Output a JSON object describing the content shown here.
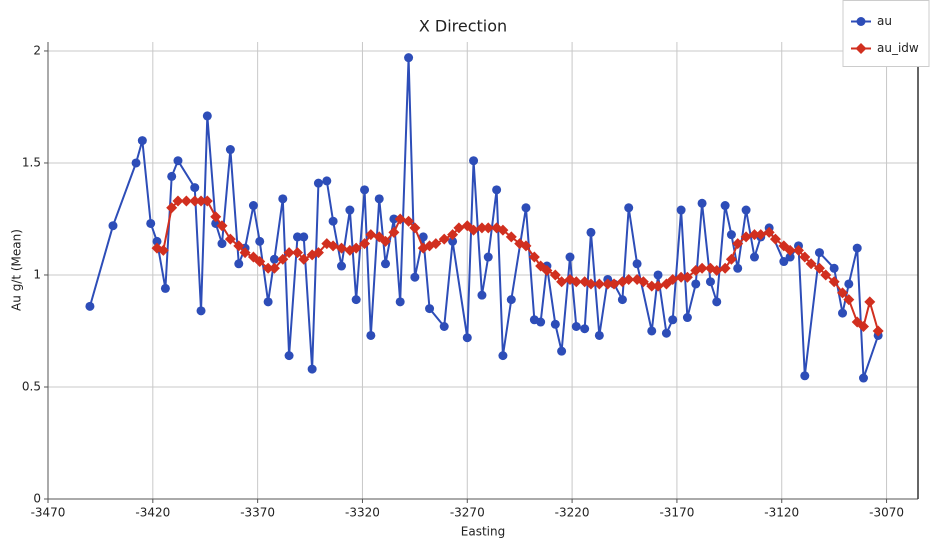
{
  "chart_data": {
    "type": "line",
    "title": "X Direction",
    "x_label": "Easting",
    "y_label": "Au g/t (Mean)",
    "xlim": [
      -3470,
      -3055
    ],
    "ylim": [
      0,
      2.04
    ],
    "xticks": [
      -3470,
      -3420,
      -3370,
      -3320,
      -3270,
      -3220,
      -3170,
      -3120,
      -3070
    ],
    "yticks": [
      0,
      0.5,
      1,
      1.5,
      2
    ],
    "grid": true,
    "legend": "top-right",
    "series": [
      {
        "name": "au",
        "color": "#2d4db8",
        "marker": "circle",
        "x": [
          -3450,
          -3439,
          -3428,
          -3425,
          -3421,
          -3418,
          -3414,
          -3411,
          -3408,
          -3400,
          -3397,
          -3394,
          -3390,
          -3387,
          -3383,
          -3379,
          -3376,
          -3372,
          -3369,
          -3365,
          -3362,
          -3358,
          -3355,
          -3351,
          -3348,
          -3344,
          -3341,
          -3337,
          -3334,
          -3330,
          -3326,
          -3323,
          -3319,
          -3316,
          -3312,
          -3309,
          -3305,
          -3302,
          -3298,
          -3295,
          -3291,
          -3288,
          -3281,
          -3277,
          -3270,
          -3267,
          -3263,
          -3260,
          -3256,
          -3253,
          -3249,
          -3242,
          -3238,
          -3235,
          -3232,
          -3228,
          -3225,
          -3221,
          -3218,
          -3214,
          -3211,
          -3207,
          -3203,
          -3200,
          -3196,
          -3193,
          -3189,
          -3182,
          -3179,
          -3175,
          -3172,
          -3168,
          -3165,
          -3161,
          -3158,
          -3154,
          -3151,
          -3147,
          -3144,
          -3141,
          -3137,
          -3133,
          -3130,
          -3126,
          -3119,
          -3116,
          -3112,
          -3109,
          -3102,
          -3095,
          -3091,
          -3088,
          -3084,
          -3081,
          -3074
        ],
        "values": [
          0.86,
          1.22,
          1.5,
          1.6,
          1.23,
          1.15,
          0.94,
          1.44,
          1.51,
          1.39,
          0.84,
          1.71,
          1.23,
          1.14,
          1.56,
          1.05,
          1.12,
          1.31,
          1.15,
          0.88,
          1.07,
          1.34,
          0.64,
          1.17,
          1.17,
          0.58,
          1.41,
          1.42,
          1.24,
          1.04,
          1.29,
          0.89,
          1.38,
          0.73,
          1.34,
          1.05,
          1.25,
          0.88,
          1.97,
          0.99,
          1.17,
          0.85,
          0.77,
          1.15,
          0.72,
          1.51,
          0.91,
          1.08,
          1.38,
          0.64,
          0.89,
          1.3,
          0.8,
          0.79,
          1.04,
          0.78,
          0.66,
          1.08,
          0.77,
          0.76,
          1.19,
          0.73,
          0.98,
          0.96,
          0.89,
          1.3,
          1.05,
          0.75,
          1.0,
          0.74,
          0.8,
          1.29,
          0.81,
          0.96,
          1.32,
          0.97,
          0.88,
          1.31,
          1.18,
          1.03,
          1.29,
          1.08,
          1.17,
          1.21,
          1.06,
          1.08,
          1.13,
          0.55,
          1.1,
          1.03,
          0.83,
          0.96,
          1.12,
          0.54,
          0.73
        ]
      },
      {
        "name": "au_idw",
        "color": "#d12f1f",
        "marker": "diamond",
        "x": [
          -3418,
          -3415,
          -3411,
          -3408,
          -3404,
          -3400,
          -3397,
          -3394,
          -3390,
          -3387,
          -3383,
          -3379,
          -3376,
          -3372,
          -3369,
          -3365,
          -3362,
          -3358,
          -3355,
          -3351,
          -3348,
          -3344,
          -3341,
          -3337,
          -3334,
          -3330,
          -3326,
          -3323,
          -3319,
          -3316,
          -3312,
          -3309,
          -3305,
          -3302,
          -3298,
          -3295,
          -3291,
          -3288,
          -3285,
          -3281,
          -3277,
          -3274,
          -3270,
          -3267,
          -3263,
          -3260,
          -3256,
          -3253,
          -3249,
          -3245,
          -3242,
          -3238,
          -3235,
          -3232,
          -3228,
          -3225,
          -3221,
          -3218,
          -3214,
          -3211,
          -3207,
          -3203,
          -3200,
          -3196,
          -3193,
          -3189,
          -3186,
          -3182,
          -3179,
          -3175,
          -3172,
          -3168,
          -3165,
          -3161,
          -3158,
          -3154,
          -3151,
          -3147,
          -3144,
          -3141,
          -3137,
          -3133,
          -3130,
          -3126,
          -3123,
          -3119,
          -3116,
          -3112,
          -3109,
          -3106,
          -3102,
          -3099,
          -3095,
          -3091,
          -3088,
          -3084,
          -3081,
          -3078,
          -3074
        ],
        "values": [
          1.12,
          1.11,
          1.3,
          1.33,
          1.33,
          1.33,
          1.33,
          1.33,
          1.26,
          1.22,
          1.16,
          1.13,
          1.1,
          1.08,
          1.06,
          1.03,
          1.03,
          1.07,
          1.1,
          1.1,
          1.07,
          1.09,
          1.1,
          1.14,
          1.13,
          1.12,
          1.11,
          1.12,
          1.14,
          1.18,
          1.17,
          1.15,
          1.19,
          1.25,
          1.24,
          1.21,
          1.12,
          1.13,
          1.14,
          1.16,
          1.18,
          1.21,
          1.22,
          1.2,
          1.21,
          1.21,
          1.21,
          1.2,
          1.17,
          1.14,
          1.13,
          1.08,
          1.04,
          1.02,
          1.0,
          0.97,
          0.98,
          0.97,
          0.97,
          0.96,
          0.96,
          0.96,
          0.96,
          0.97,
          0.98,
          0.98,
          0.97,
          0.95,
          0.95,
          0.96,
          0.98,
          0.99,
          0.99,
          1.02,
          1.03,
          1.03,
          1.02,
          1.03,
          1.07,
          1.14,
          1.17,
          1.18,
          1.18,
          1.19,
          1.16,
          1.13,
          1.11,
          1.11,
          1.08,
          1.05,
          1.03,
          1.0,
          0.97,
          0.92,
          0.89,
          0.79,
          0.77,
          0.88,
          0.75
        ]
      }
    ]
  }
}
